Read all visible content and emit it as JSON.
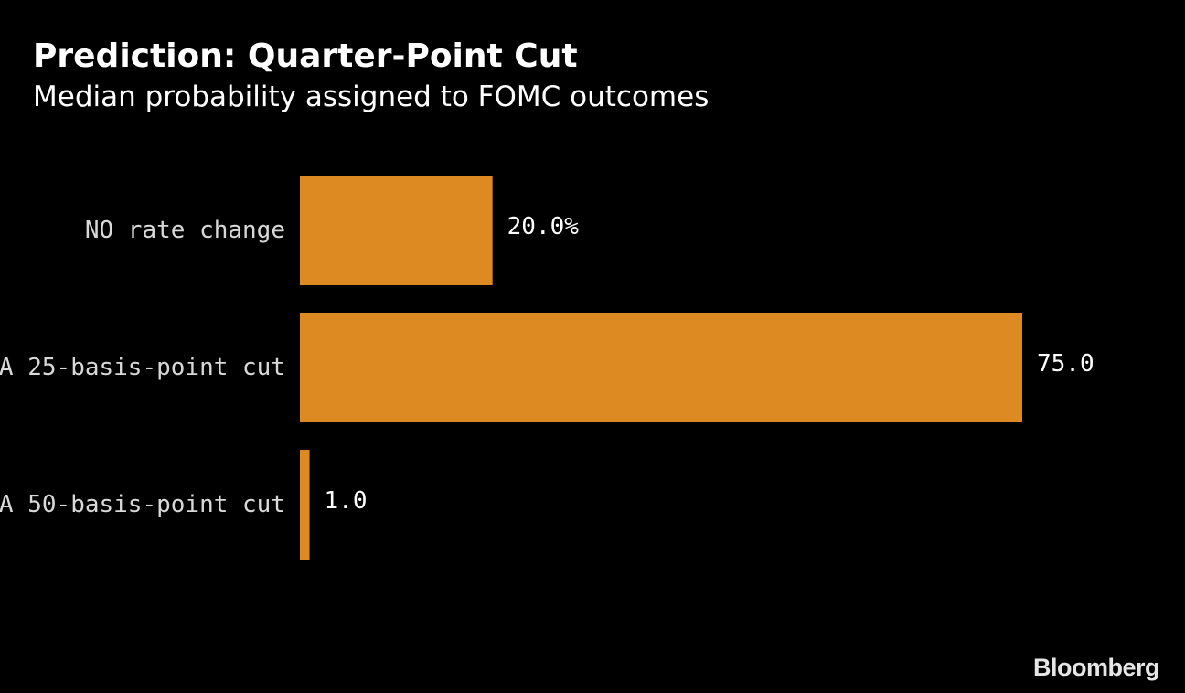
{
  "chart_data": {
    "type": "bar",
    "orientation": "horizontal",
    "title": "Prediction: Quarter-Point Cut",
    "subtitle": "Median probability assigned to FOMC outcomes",
    "categories": [
      "NO rate change",
      "A 25-basis-point cut",
      "A 50-basis-point cut"
    ],
    "values": [
      20.0,
      75.0,
      1.0
    ],
    "value_labels": [
      "20.0%",
      "75.0",
      "1.0"
    ],
    "xlim": [
      0,
      100
    ],
    "grid": false,
    "legend": "none",
    "bar_color": "#dd8a22"
  },
  "source": {
    "logo_text": "Bloomberg"
  }
}
